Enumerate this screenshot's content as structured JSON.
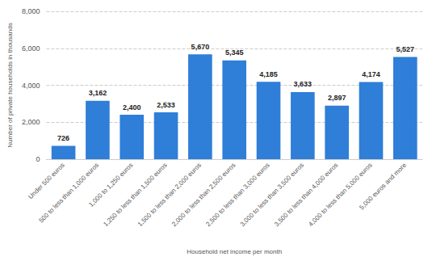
{
  "chart_data": {
    "type": "bar",
    "xlabel": "Household net income per month",
    "ylabel": "Number of private households in thousands",
    "categories": [
      "Under 500 euros",
      "500 to less than 1,000 euros",
      "1,000 to 1,250 euros",
      "1,250 to less than 1,500 euros",
      "1,500 to less than 2,000 euros",
      "2,000 to less than 2,500 euros",
      "2,500 to less than 3,000 euros",
      "3,000 to less than 3,500 euros",
      "3,500 to less than 4,000 euros",
      "4,000 to less than 5,000 euros",
      "5,000 euros and more"
    ],
    "values": [
      726,
      3162,
      2400,
      2533,
      5670,
      5345,
      4185,
      3633,
      2897,
      4174,
      5527
    ],
    "value_labels": [
      "726",
      "3,162",
      "2,400",
      "2,533",
      "5,670",
      "5,345",
      "4,185",
      "3,633",
      "2,897",
      "4,174",
      "5,527"
    ],
    "color": "#2f7ed8",
    "ylim": [
      0,
      8000
    ],
    "yticks": [
      0,
      {
        "value": 2000,
        "label": "2,000"
      },
      {
        "value": 4000,
        "label": "4,000"
      },
      {
        "value": 6000,
        "label": "6,000"
      },
      {
        "value": 8000,
        "label": "8,000"
      }
    ],
    "grid": true,
    "data_labels": true
  }
}
